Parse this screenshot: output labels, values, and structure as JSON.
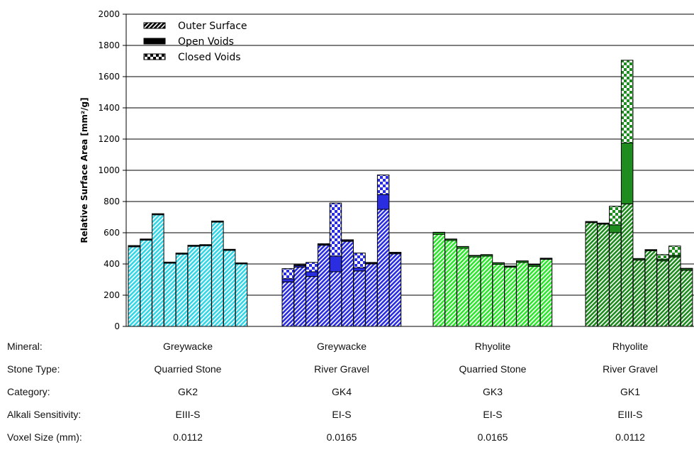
{
  "chart_data": {
    "type": "bar",
    "stacked": true,
    "ylabel": "Relative Surface Area [mm²/g]",
    "ylim": [
      0,
      2000
    ],
    "yticks": [
      0,
      200,
      400,
      600,
      800,
      1000,
      1200,
      1400,
      1600,
      1800,
      2000
    ],
    "grid": true,
    "legend": {
      "position": "top-left",
      "entries": [
        "Outer Surface",
        "Open Voids",
        "Closed Voids"
      ]
    },
    "groups": [
      {
        "mineral": "Greywacke",
        "stone_type": "Quarried Stone",
        "category": "GK2",
        "alkali_sensitivity": "EIII-S",
        "voxel_size": "0.0112",
        "color": "#33d6e6",
        "bars": [
          {
            "outer": 510,
            "open": 5,
            "closed": 3
          },
          {
            "outer": 553,
            "open": 5,
            "closed": 2
          },
          {
            "outer": 715,
            "open": 5,
            "closed": 2
          },
          {
            "outer": 405,
            "open": 5,
            "closed": 2
          },
          {
            "outer": 463,
            "open": 5,
            "closed": 2
          },
          {
            "outer": 513,
            "open": 5,
            "closed": 2
          },
          {
            "outer": 517,
            "open": 5,
            "closed": 2
          },
          {
            "outer": 668,
            "open": 5,
            "closed": 2
          },
          {
            "outer": 487,
            "open": 5,
            "closed": 2
          },
          {
            "outer": 400,
            "open": 5,
            "closed": 2
          }
        ]
      },
      {
        "mineral": "Greywacke",
        "stone_type": "River Gravel",
        "category": "GK4",
        "alkali_sensitivity": "EI-S",
        "voxel_size": "0.0165",
        "color": "#2a2ee0",
        "bars": [
          {
            "outer": 285,
            "open": 20,
            "closed": 65
          },
          {
            "outer": 380,
            "open": 10,
            "closed": 5
          },
          {
            "outer": 320,
            "open": 30,
            "closed": 60
          },
          {
            "outer": 520,
            "open": 5,
            "closed": 5
          },
          {
            "outer": 350,
            "open": 100,
            "closed": 340
          },
          {
            "outer": 545,
            "open": 5,
            "closed": 5
          },
          {
            "outer": 355,
            "open": 20,
            "closed": 95
          },
          {
            "outer": 400,
            "open": 5,
            "closed": 5
          },
          {
            "outer": 750,
            "open": 95,
            "closed": 125
          },
          {
            "outer": 465,
            "open": 5,
            "closed": 5
          }
        ]
      },
      {
        "mineral": "Rhyolite",
        "stone_type": "Quarried Stone",
        "category": "GK3",
        "alkali_sensitivity": "EI-S",
        "voxel_size": "0.0165",
        "color": "#2ee62e",
        "bars": [
          {
            "outer": 590,
            "open": 10,
            "closed": 3
          },
          {
            "outer": 550,
            "open": 8,
            "closed": 2
          },
          {
            "outer": 500,
            "open": 10,
            "closed": 2
          },
          {
            "outer": 445,
            "open": 8,
            "closed": 2
          },
          {
            "outer": 450,
            "open": 8,
            "closed": 2
          },
          {
            "outer": 398,
            "open": 8,
            "closed": 2
          },
          {
            "outer": 380,
            "open": 5,
            "closed": 2
          },
          {
            "outer": 410,
            "open": 8,
            "closed": 2
          },
          {
            "outer": 385,
            "open": 8,
            "closed": 2
          },
          {
            "outer": 430,
            "open": 5,
            "closed": 2
          }
        ]
      },
      {
        "mineral": "Rhyolite",
        "stone_type": "River Gravel",
        "category": "GK1",
        "alkali_sensitivity": "EIII-S",
        "voxel_size": "0.0112",
        "color": "#1e8c1e",
        "bars": [
          {
            "outer": 665,
            "open": 5,
            "closed": 2
          },
          {
            "outer": 655,
            "open": 5,
            "closed": 2
          },
          {
            "outer": 600,
            "open": 50,
            "closed": 120
          },
          {
            "outer": 785,
            "open": 390,
            "closed": 530
          },
          {
            "outer": 425,
            "open": 8,
            "closed": 2
          },
          {
            "outer": 485,
            "open": 5,
            "closed": 2
          },
          {
            "outer": 420,
            "open": 10,
            "closed": 30
          },
          {
            "outer": 445,
            "open": 10,
            "closed": 60
          },
          {
            "outer": 360,
            "open": 10,
            "closed": 2
          }
        ]
      }
    ],
    "row_labels": {
      "mineral": "Mineral:",
      "stone_type": "Stone Type:",
      "category": "Category:",
      "alkali_sensitivity": "Alkali Sensitivity:",
      "voxel_size": "Voxel Size (mm):"
    }
  }
}
